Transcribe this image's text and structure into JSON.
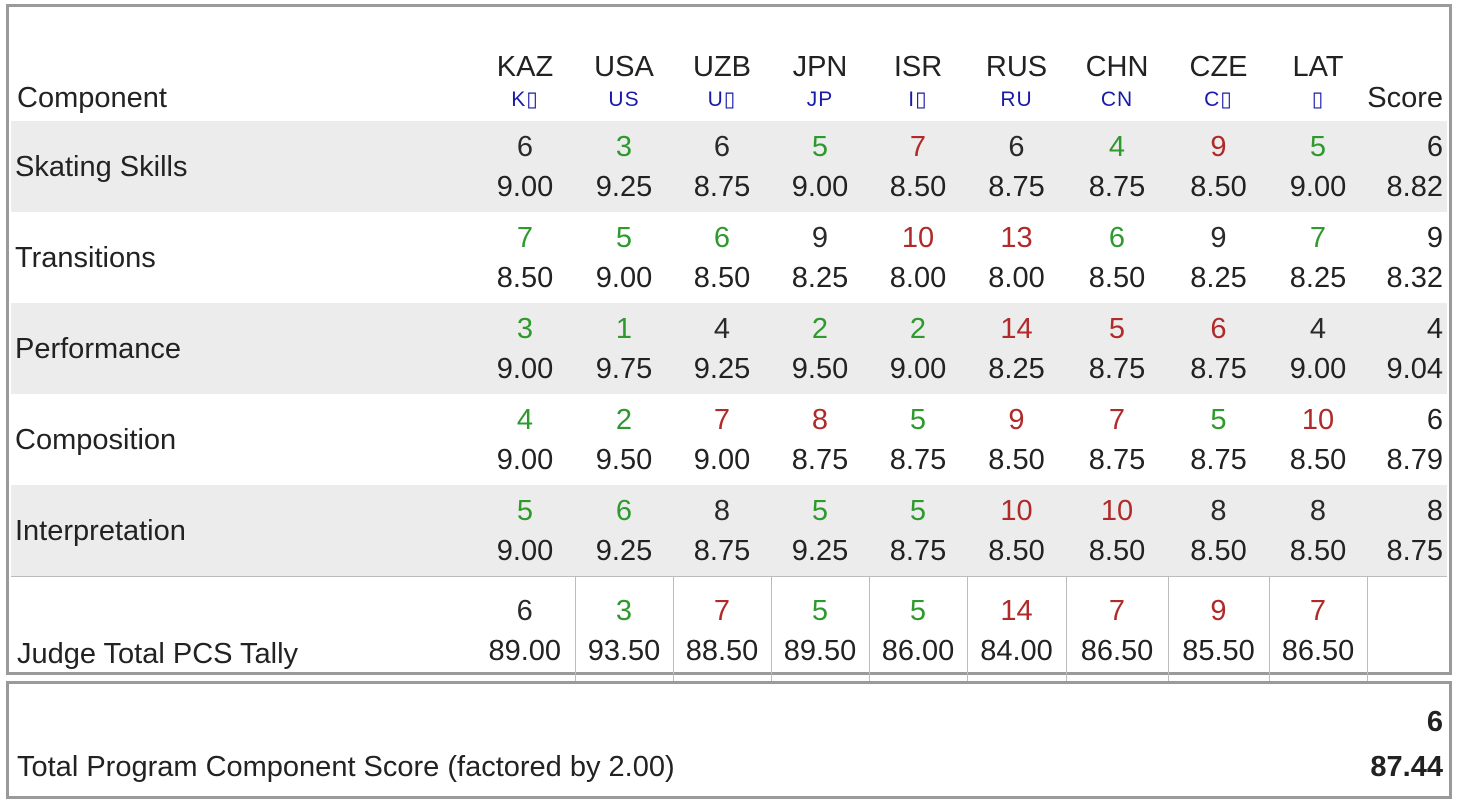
{
  "header": {
    "component_label": "Component",
    "score_label": "Score",
    "judges": [
      {
        "code": "KAZ",
        "flag": "K▯"
      },
      {
        "code": "USA",
        "flag": "US"
      },
      {
        "code": "UZB",
        "flag": "U▯"
      },
      {
        "code": "JPN",
        "flag": "JP"
      },
      {
        "code": "ISR",
        "flag": "I▯"
      },
      {
        "code": "RUS",
        "flag": "RU"
      },
      {
        "code": "CHN",
        "flag": "CN"
      },
      {
        "code": "CZE",
        "flag": "C▯"
      },
      {
        "code": "LAT",
        "flag": "▯"
      }
    ]
  },
  "components": [
    {
      "name": "Skating Skills",
      "cells": [
        {
          "rank": "6",
          "mark": "9.00",
          "tone": "black"
        },
        {
          "rank": "3",
          "mark": "9.25",
          "tone": "green"
        },
        {
          "rank": "6",
          "mark": "8.75",
          "tone": "black"
        },
        {
          "rank": "5",
          "mark": "9.00",
          "tone": "green"
        },
        {
          "rank": "7",
          "mark": "8.50",
          "tone": "red"
        },
        {
          "rank": "6",
          "mark": "8.75",
          "tone": "black"
        },
        {
          "rank": "4",
          "mark": "8.75",
          "tone": "green"
        },
        {
          "rank": "9",
          "mark": "8.50",
          "tone": "red"
        },
        {
          "rank": "5",
          "mark": "9.00",
          "tone": "green"
        }
      ],
      "score_rank": "6",
      "score": "8.82"
    },
    {
      "name": "Transitions",
      "cells": [
        {
          "rank": "7",
          "mark": "8.50",
          "tone": "green"
        },
        {
          "rank": "5",
          "mark": "9.00",
          "tone": "green"
        },
        {
          "rank": "6",
          "mark": "8.50",
          "tone": "green"
        },
        {
          "rank": "9",
          "mark": "8.25",
          "tone": "black"
        },
        {
          "rank": "10",
          "mark": "8.00",
          "tone": "red"
        },
        {
          "rank": "13",
          "mark": "8.00",
          "tone": "red"
        },
        {
          "rank": "6",
          "mark": "8.50",
          "tone": "green"
        },
        {
          "rank": "9",
          "mark": "8.25",
          "tone": "black"
        },
        {
          "rank": "7",
          "mark": "8.25",
          "tone": "green"
        }
      ],
      "score_rank": "9",
      "score": "8.32"
    },
    {
      "name": "Performance",
      "cells": [
        {
          "rank": "3",
          "mark": "9.00",
          "tone": "green"
        },
        {
          "rank": "1",
          "mark": "9.75",
          "tone": "green"
        },
        {
          "rank": "4",
          "mark": "9.25",
          "tone": "black"
        },
        {
          "rank": "2",
          "mark": "9.50",
          "tone": "green"
        },
        {
          "rank": "2",
          "mark": "9.00",
          "tone": "green"
        },
        {
          "rank": "14",
          "mark": "8.25",
          "tone": "red"
        },
        {
          "rank": "5",
          "mark": "8.75",
          "tone": "red"
        },
        {
          "rank": "6",
          "mark": "8.75",
          "tone": "red"
        },
        {
          "rank": "4",
          "mark": "9.00",
          "tone": "black"
        }
      ],
      "score_rank": "4",
      "score": "9.04"
    },
    {
      "name": "Composition",
      "cells": [
        {
          "rank": "4",
          "mark": "9.00",
          "tone": "green"
        },
        {
          "rank": "2",
          "mark": "9.50",
          "tone": "green"
        },
        {
          "rank": "7",
          "mark": "9.00",
          "tone": "red"
        },
        {
          "rank": "8",
          "mark": "8.75",
          "tone": "red"
        },
        {
          "rank": "5",
          "mark": "8.75",
          "tone": "green"
        },
        {
          "rank": "9",
          "mark": "8.50",
          "tone": "red"
        },
        {
          "rank": "7",
          "mark": "8.75",
          "tone": "red"
        },
        {
          "rank": "5",
          "mark": "8.75",
          "tone": "green"
        },
        {
          "rank": "10",
          "mark": "8.50",
          "tone": "red"
        }
      ],
      "score_rank": "6",
      "score": "8.79"
    },
    {
      "name": "Interpretation",
      "cells": [
        {
          "rank": "5",
          "mark": "9.00",
          "tone": "green"
        },
        {
          "rank": "6",
          "mark": "9.25",
          "tone": "green"
        },
        {
          "rank": "8",
          "mark": "8.75",
          "tone": "black"
        },
        {
          "rank": "5",
          "mark": "9.25",
          "tone": "green"
        },
        {
          "rank": "5",
          "mark": "8.75",
          "tone": "green"
        },
        {
          "rank": "10",
          "mark": "8.50",
          "tone": "red"
        },
        {
          "rank": "10",
          "mark": "8.50",
          "tone": "red"
        },
        {
          "rank": "8",
          "mark": "8.50",
          "tone": "black"
        },
        {
          "rank": "8",
          "mark": "8.50",
          "tone": "black"
        }
      ],
      "score_rank": "8",
      "score": "8.75"
    }
  ],
  "tally": {
    "label": "Judge Total PCS Tally",
    "cells": [
      {
        "rank": "6",
        "mark": "89.00",
        "tone": "black"
      },
      {
        "rank": "3",
        "mark": "93.50",
        "tone": "green"
      },
      {
        "rank": "7",
        "mark": "88.50",
        "tone": "red"
      },
      {
        "rank": "5",
        "mark": "89.50",
        "tone": "green"
      },
      {
        "rank": "5",
        "mark": "86.00",
        "tone": "green"
      },
      {
        "rank": "14",
        "mark": "84.00",
        "tone": "red"
      },
      {
        "rank": "7",
        "mark": "86.50",
        "tone": "red"
      },
      {
        "rank": "9",
        "mark": "85.50",
        "tone": "red"
      },
      {
        "rank": "7",
        "mark": "86.50",
        "tone": "red"
      }
    ]
  },
  "total": {
    "label": "Total Program Component Score (factored by 2.00)",
    "rank": "6",
    "value": "87.44"
  },
  "colors": {
    "green": "#2e9a2e",
    "red": "#b02a2a",
    "black": "#2a2a2a",
    "flag_text": "#1a1aaa",
    "row_shade": "#ececec",
    "border": "#9a9a9a"
  }
}
